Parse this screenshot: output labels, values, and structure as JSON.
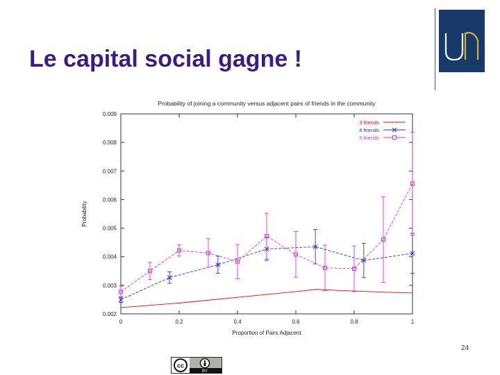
{
  "slide": {
    "title": "Le capital social gagne !",
    "page_number": "24"
  },
  "logo": {
    "text": "Un"
  },
  "license_badge": {
    "icons": [
      "cc-icon",
      "attribution-icon"
    ],
    "text": "BY"
  },
  "chart_data": {
    "type": "line",
    "title": "Probability of joining a community versus adjacent pairs of friends in the community",
    "xlabel": "Proportion of Pairs Adjacent",
    "ylabel": "Probability",
    "xlim": [
      0,
      1
    ],
    "ylim": [
      0.002,
      0.009
    ],
    "x_ticks": [
      0,
      0.2,
      0.4,
      0.6,
      0.8,
      1
    ],
    "x_tick_labels": [
      "0",
      "0.2",
      "0.4",
      "0.6",
      "0.8",
      "1"
    ],
    "y_ticks": [
      0.002,
      0.003,
      0.004,
      0.005,
      0.006,
      0.007,
      0.008,
      0.009
    ],
    "y_tick_labels": [
      "0.002",
      "0.003",
      "0.004",
      "0.005",
      "0.006",
      "0.007",
      "0.008",
      "0.009"
    ],
    "legend_position": "top-right",
    "grid": false,
    "series": [
      {
        "name": "3 friends",
        "color": "#ff0000",
        "marker": "none",
        "points": [
          {
            "x": 0.0,
            "y": 0.00222
          },
          {
            "x": 0.1,
            "y": 0.0023
          },
          {
            "x": 0.2,
            "y": 0.00238
          },
          {
            "x": 0.3,
            "y": 0.00248
          },
          {
            "x": 0.4,
            "y": 0.00258
          },
          {
            "x": 0.5,
            "y": 0.00268
          },
          {
            "x": 0.6,
            "y": 0.00278
          },
          {
            "x": 0.67,
            "y": 0.00286
          },
          {
            "x": 0.75,
            "y": 0.00282
          },
          {
            "x": 0.8,
            "y": 0.0028
          },
          {
            "x": 0.9,
            "y": 0.00276
          },
          {
            "x": 1.0,
            "y": 0.00273
          }
        ]
      },
      {
        "name": "4 friends",
        "color": "#2233cc",
        "marker": "x",
        "points": [
          {
            "x": 0.0,
            "y": 0.0025,
            "err": 0.0001
          },
          {
            "x": 0.167,
            "y": 0.00327,
            "err": 0.0002
          },
          {
            "x": 0.333,
            "y": 0.00372,
            "err": 0.0003
          },
          {
            "x": 0.5,
            "y": 0.00427,
            "err": 0.0004
          },
          {
            "x": 0.667,
            "y": 0.00435,
            "err": 0.0006
          },
          {
            "x": 0.833,
            "y": 0.00387,
            "err": 0.0006
          },
          {
            "x": 1.0,
            "y": 0.00412,
            "err": 0.0007
          }
        ]
      },
      {
        "name": "5 friends",
        "color": "#e030e0",
        "marker": "square",
        "points": [
          {
            "x": 0.0,
            "y": 0.00277,
            "err": 0.0002
          },
          {
            "x": 0.1,
            "y": 0.0035,
            "err": 0.0003
          },
          {
            "x": 0.2,
            "y": 0.00422,
            "err": 0.0002
          },
          {
            "x": 0.3,
            "y": 0.00413,
            "err": 0.0005
          },
          {
            "x": 0.4,
            "y": 0.00383,
            "err": 0.0006
          },
          {
            "x": 0.5,
            "y": 0.00472,
            "err": 0.0008
          },
          {
            "x": 0.6,
            "y": 0.00408,
            "err": 0.0008
          },
          {
            "x": 0.7,
            "y": 0.00361,
            "err": 0.0008
          },
          {
            "x": 0.8,
            "y": 0.00358,
            "err": 0.0008
          },
          {
            "x": 0.9,
            "y": 0.0046,
            "err": 0.0015
          },
          {
            "x": 1.0,
            "y": 0.00656,
            "err": 0.0018
          }
        ]
      }
    ]
  }
}
